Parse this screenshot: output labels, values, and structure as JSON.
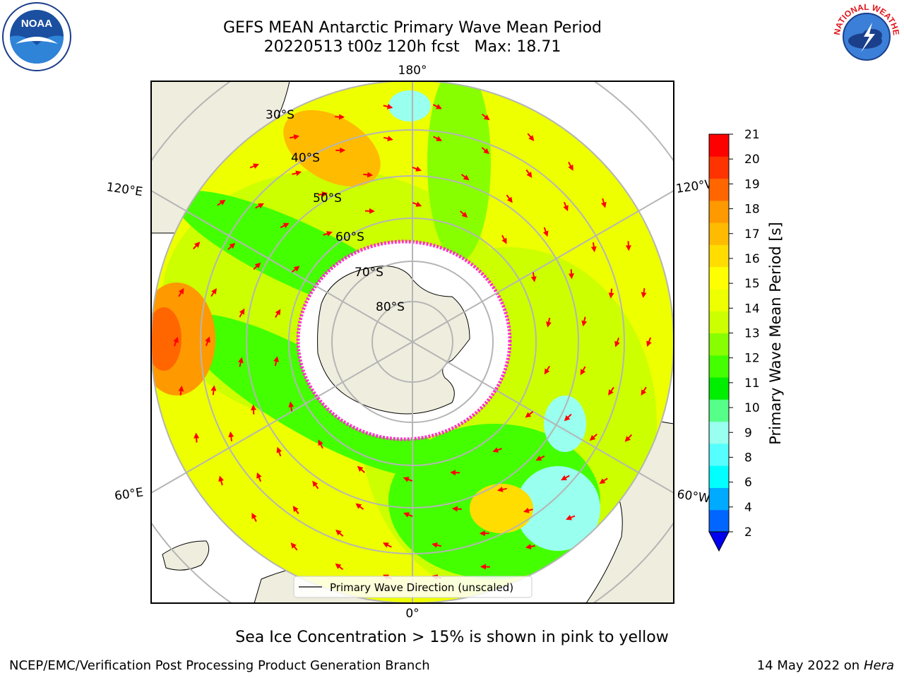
{
  "header": {
    "title_line1": "GEFS MEAN Antarctic Primary Wave Mean Period",
    "title_line2": "20220513 t00z 120h fcst   Max: 18.71"
  },
  "logos": {
    "left": "noaa-logo",
    "right": "national-weather-service-logo",
    "noaa_text": "NOAA",
    "nws_text": "NATIONAL WEATHER SERVICE"
  },
  "map": {
    "projection": "south-polar-stereographic",
    "longitude_labels": {
      "top": "180°",
      "bottom": "0°",
      "upper_left": "120°E",
      "upper_right": "120°W",
      "lower_left": "60°E",
      "lower_right": "60°W"
    },
    "latitude_labels": [
      "30°S",
      "40°S",
      "50°S",
      "60°S",
      "70°S",
      "80°S"
    ],
    "legend": "Primary Wave Direction (unscaled)",
    "colors": {
      "land": "#efedde",
      "ice": "#ffffff",
      "arrow": "#ff0000",
      "ice_edge": "#ff33cc",
      "grid": "#b5b5b5"
    }
  },
  "colorbar": {
    "label": "Primary Wave Mean Period [s]",
    "ticks": [
      "21",
      "20",
      "19",
      "18",
      "17",
      "16",
      "15",
      "14",
      "13",
      "12",
      "11",
      "10",
      "9",
      "8",
      "6",
      "4",
      "2"
    ],
    "colors": [
      "#ff0000",
      "#ff3300",
      "#ff6600",
      "#ff9900",
      "#ffbb00",
      "#ffdd00",
      "#ffff00",
      "#eeff00",
      "#ccff00",
      "#88ff00",
      "#44ff00",
      "#00ee00",
      "#55ff88",
      "#99ffee",
      "#55ffff",
      "#00ffff",
      "#00aaff",
      "#0066ff"
    ],
    "extend_color": "#0000ee"
  },
  "footer": {
    "note": "Sea Ice Concentration > 15% is shown in pink to yellow",
    "credit": "NCEP/EMC/Verification Post Processing Product Generation Branch",
    "date": "14 May 2022 on",
    "machine": "Hera"
  }
}
